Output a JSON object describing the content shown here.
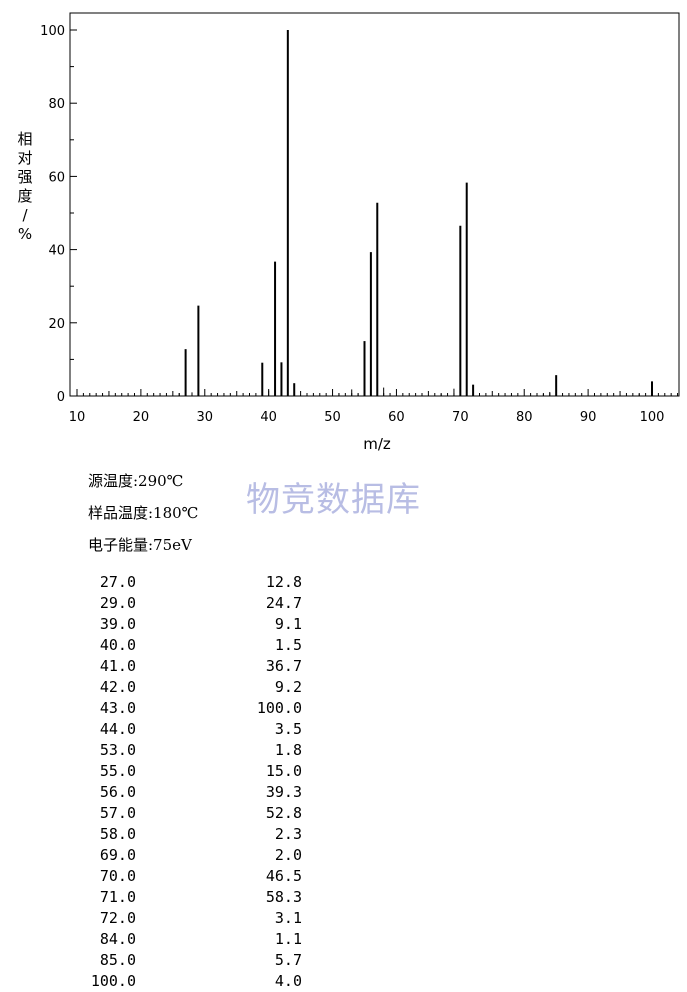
{
  "chart_data": {
    "type": "bar",
    "title": "",
    "xlabel": "m/z",
    "ylabel": "相对强度/%",
    "xlim": [
      10,
      105
    ],
    "ylim": [
      0,
      105
    ],
    "xticks": [
      10,
      20,
      30,
      40,
      50,
      60,
      70,
      80,
      90,
      100
    ],
    "yticks": [
      0,
      20,
      40,
      60,
      80,
      100
    ],
    "grid": false,
    "legend": "none",
    "peaks": [
      {
        "mz": 26,
        "abundance": 0.8
      },
      {
        "mz": 27,
        "abundance": 12.8
      },
      {
        "mz": 28,
        "abundance": 1.0
      },
      {
        "mz": 29,
        "abundance": 24.7
      },
      {
        "mz": 39,
        "abundance": 9.1
      },
      {
        "mz": 40,
        "abundance": 1.5
      },
      {
        "mz": 41,
        "abundance": 36.7
      },
      {
        "mz": 42,
        "abundance": 9.2
      },
      {
        "mz": 43,
        "abundance": 100.0
      },
      {
        "mz": 44,
        "abundance": 3.5
      },
      {
        "mz": 51,
        "abundance": 0.8
      },
      {
        "mz": 53,
        "abundance": 1.8
      },
      {
        "mz": 54,
        "abundance": 0.7
      },
      {
        "mz": 55,
        "abundance": 15.0
      },
      {
        "mz": 56,
        "abundance": 39.3
      },
      {
        "mz": 57,
        "abundance": 52.8
      },
      {
        "mz": 58,
        "abundance": 2.3
      },
      {
        "mz": 67,
        "abundance": 0.6
      },
      {
        "mz": 69,
        "abundance": 2.0
      },
      {
        "mz": 70,
        "abundance": 46.5
      },
      {
        "mz": 71,
        "abundance": 58.3
      },
      {
        "mz": 72,
        "abundance": 3.1
      },
      {
        "mz": 83,
        "abundance": 0.6
      },
      {
        "mz": 84,
        "abundance": 1.1
      },
      {
        "mz": 85,
        "abundance": 5.7
      },
      {
        "mz": 98,
        "abundance": 0.6
      },
      {
        "mz": 100,
        "abundance": 4.0
      }
    ],
    "colors": {
      "bar": "#000000",
      "axis": "#000000"
    }
  },
  "conditions": {
    "source_temp": "源温度:290℃",
    "sample_temp": "样品温度:180℃",
    "electron_energy": "电子能量:75eV"
  },
  "watermark": "物竞数据库",
  "peak_list": [
    {
      "mz": "27.0",
      "abundance": "12.8"
    },
    {
      "mz": "29.0",
      "abundance": "24.7"
    },
    {
      "mz": "39.0",
      "abundance": "9.1"
    },
    {
      "mz": "40.0",
      "abundance": "1.5"
    },
    {
      "mz": "41.0",
      "abundance": "36.7"
    },
    {
      "mz": "42.0",
      "abundance": "9.2"
    },
    {
      "mz": "43.0",
      "abundance": "100.0"
    },
    {
      "mz": "44.0",
      "abundance": "3.5"
    },
    {
      "mz": "53.0",
      "abundance": "1.8"
    },
    {
      "mz": "55.0",
      "abundance": "15.0"
    },
    {
      "mz": "56.0",
      "abundance": "39.3"
    },
    {
      "mz": "57.0",
      "abundance": "52.8"
    },
    {
      "mz": "58.0",
      "abundance": "2.3"
    },
    {
      "mz": "69.0",
      "abundance": "2.0"
    },
    {
      "mz": "70.0",
      "abundance": "46.5"
    },
    {
      "mz": "71.0",
      "abundance": "58.3"
    },
    {
      "mz": "72.0",
      "abundance": "3.1"
    },
    {
      "mz": "84.0",
      "abundance": "1.1"
    },
    {
      "mz": "85.0",
      "abundance": "5.7"
    },
    {
      "mz": "100.0",
      "abundance": "4.0"
    }
  ]
}
